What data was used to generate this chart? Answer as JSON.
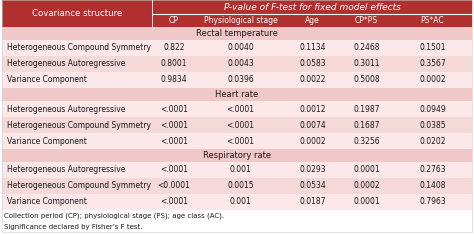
{
  "title": "P-value of F-test for fixed model effects",
  "col_header": [
    "Covariance structure",
    "CP",
    "Physiological stage",
    "Age",
    "CP*PS",
    "PS*AC"
  ],
  "sections": [
    {
      "label": "Rectal temperature",
      "rows": [
        [
          "Heterogeneous Compound Symmetry",
          "0.822",
          "0.0040",
          "0.1134",
          "0.2468",
          "0.1501"
        ],
        [
          "Heterogeneous Autoregressive",
          "0.8001",
          "0.0043",
          "0.0583",
          "0.3011",
          "0.3567"
        ],
        [
          "Variance Component",
          "0.9834",
          "0.0396",
          "0.0022",
          "0.5008",
          "0.0002"
        ]
      ]
    },
    {
      "label": "Heart rate",
      "rows": [
        [
          "Heterogeneous Autoregressive",
          "<.0001",
          "<.0001",
          "0.0012",
          "0.1987",
          "0.0949"
        ],
        [
          "Heterogeneous Compound Symmetry",
          "<.0001",
          "<.0001",
          "0.0074",
          "0.1687",
          "0.0385"
        ],
        [
          "Variance Component",
          "<.0001",
          "<.0001",
          "0.0002",
          "0.3256",
          "0.0202"
        ]
      ]
    },
    {
      "label": "Respiratory rate",
      "rows": [
        [
          "Heterogeneous Autoregressive",
          "<.0001",
          "0.001",
          "0.0293",
          "0.0001",
          "0.2763"
        ],
        [
          "Heterogeneous Compound Symmetry",
          "<0.0001",
          "0.0015",
          "0.0534",
          "0.0002",
          "0.1408"
        ],
        [
          "Variance Component",
          "<.0001",
          "0.001",
          "0.0187",
          "0.0001",
          "0.7963"
        ]
      ]
    }
  ],
  "footer": [
    "Collection period (CP); physiological stage (PS); age class (AC).",
    "Significance declared by Fisher’s F test."
  ],
  "header_bg": "#b03030",
  "subheader_bg": "#f0c8c8",
  "row_bg_0": "#fce8e8",
  "row_bg_1": "#f5d8d8",
  "header_text": "#ffffff",
  "body_text": "#1a1a1a",
  "footer_text": "#1a1a1a"
}
